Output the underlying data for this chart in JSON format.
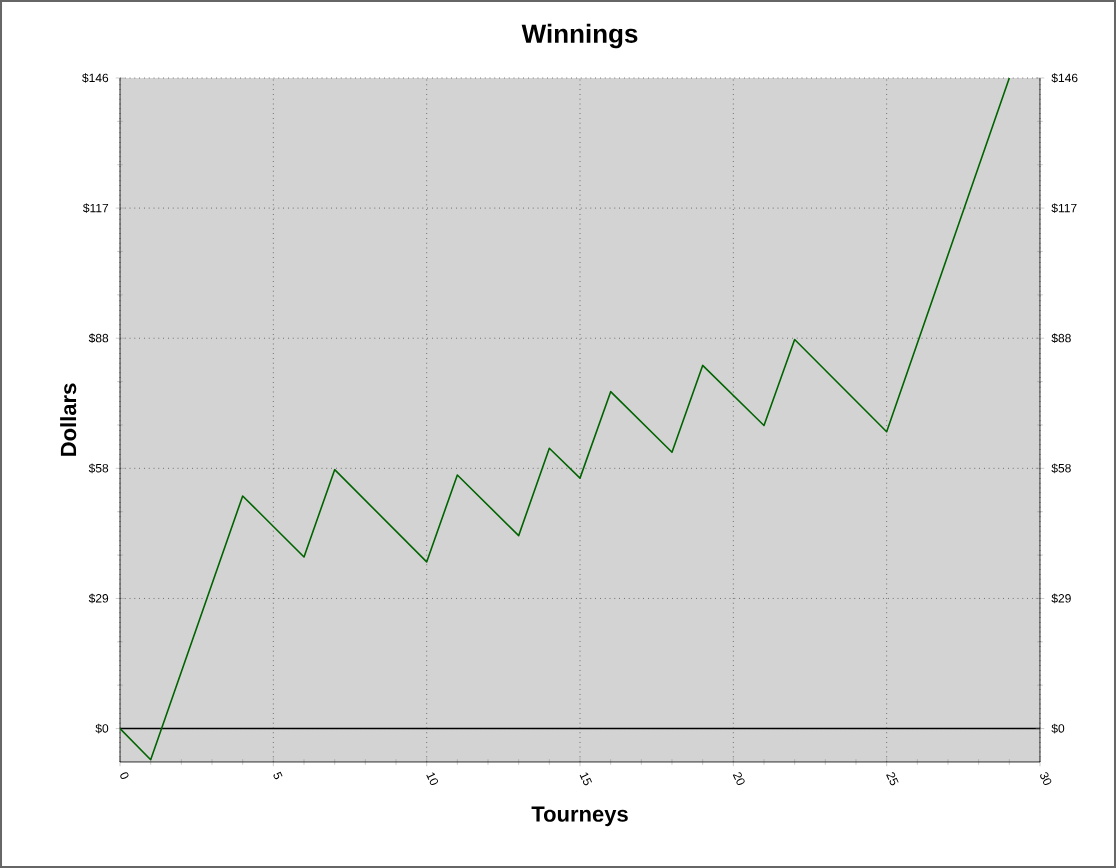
{
  "chart_data": {
    "type": "line",
    "title": "Winnings",
    "xlabel": "Tourneys",
    "ylabel": "Dollars",
    "x": [
      0,
      1,
      4,
      6,
      7,
      10,
      11,
      13,
      14,
      15,
      16,
      18,
      19,
      21,
      22,
      25,
      29
    ],
    "series": [
      {
        "color": "#006400",
        "values": [
          0,
          -7,
          52.2,
          38.5,
          58.1,
          37.4,
          56.9,
          43.3,
          62.9,
          56.2,
          75.6,
          62.0,
          81.5,
          68.0,
          87.3,
          66.6,
          146
        ]
      }
    ],
    "xlim": [
      0,
      30
    ],
    "xticks": [
      0,
      5,
      10,
      15,
      20,
      25,
      30
    ],
    "ylim": [
      -7.5,
      146
    ],
    "yticks": [
      {
        "value": 0,
        "label": "$0"
      },
      {
        "value": 29.2,
        "label": "$29"
      },
      {
        "value": 58.4,
        "label": "$58"
      },
      {
        "value": 87.6,
        "label": "$88"
      },
      {
        "value": 116.8,
        "label": "$117"
      },
      {
        "value": 146,
        "label": "$146"
      }
    ],
    "y2lim": [
      -7.5,
      146
    ],
    "y2ticks": [
      {
        "value": 0,
        "label": "$0"
      },
      {
        "value": 29.2,
        "label": "$29"
      },
      {
        "value": 58.4,
        "label": "$58"
      },
      {
        "value": 87.6,
        "label": "$88"
      },
      {
        "value": 116.8,
        "label": "$117"
      },
      {
        "value": 146,
        "label": "$146"
      }
    ],
    "ref_lines": [
      {
        "axis": "y",
        "value": 0,
        "color": "#000000"
      }
    ],
    "grid": true,
    "line_style": "solid"
  }
}
